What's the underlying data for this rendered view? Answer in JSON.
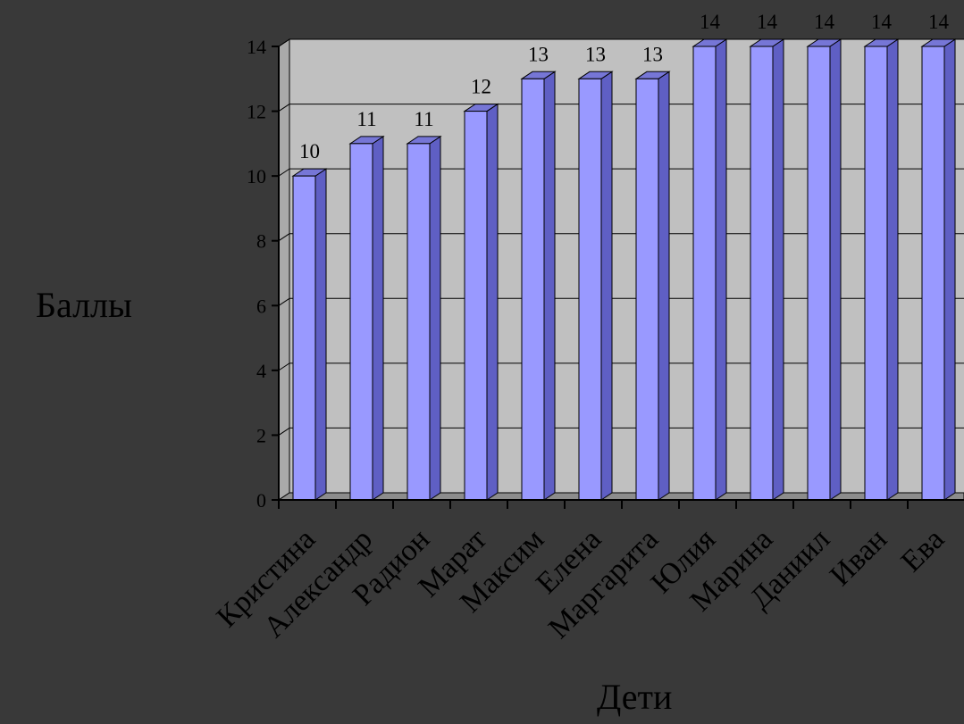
{
  "chart_data": {
    "type": "bar",
    "xlabel": "Дети",
    "ylabel": "Баллы",
    "categories": [
      "Кристина",
      "Александр",
      "Радион",
      "Марат",
      "Максим",
      "Елена",
      "Маргарита",
      "Юлия",
      "Марина",
      "Даниил",
      "Иван",
      "Ева"
    ],
    "values": [
      10,
      11,
      11,
      12,
      13,
      13,
      13,
      14,
      14,
      14,
      14,
      14
    ],
    "ylim": [
      0,
      14
    ],
    "yticks": [
      0,
      2,
      4,
      6,
      8,
      10,
      12,
      14
    ],
    "grid": true,
    "legend": "none",
    "colors": {
      "bar_front": "#9999ff",
      "bar_side": "#5f5fc4",
      "bar_top": "#7676d6",
      "plot_bg": "#c0c0c0",
      "background": "#393939",
      "text": "#000000"
    }
  }
}
